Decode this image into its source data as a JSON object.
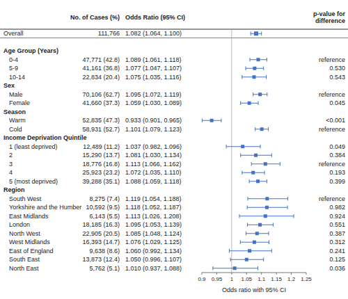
{
  "chart_data": {
    "type": "forest",
    "xlabel": "Odds ratio with 95% CI",
    "xlim": [
      0.9,
      1.25
    ],
    "xticks": [
      0.9,
      0.95,
      1,
      1.05,
      1.1,
      1.15,
      1.2,
      1.25
    ],
    "reference_line": 1,
    "color": "#4472C4",
    "column_headers": {
      "cases": "No. of Cases (%)",
      "odds_ratio": "Odds Ratio (95% CI)",
      "p_value": "p-value for\ndifference"
    },
    "overall": {
      "label": "Overall",
      "cases": "111,766",
      "value_label": "1.082 (1.064, 1.100)",
      "value": 1.082,
      "lo": 1.064,
      "hi": 1.1
    },
    "groups": [
      {
        "label": "Age Group (Years)",
        "rows": [
          {
            "label": "0-4",
            "cases": "47,771 (42.8)",
            "value_label": "1.089 (1.061, 1.118)",
            "value": 1.089,
            "lo": 1.061,
            "hi": 1.118,
            "p_value": "reference"
          },
          {
            "label": "5-9",
            "cases": "41,161 (36.8)",
            "value_label": "1.077 (1.047, 1.107)",
            "value": 1.077,
            "lo": 1.047,
            "hi": 1.107,
            "p_value": "0.530"
          },
          {
            "label": "10-14",
            "cases": "22,834 (20.4)",
            "value_label": "1.075 (1.035, 1.116)",
            "value": 1.075,
            "lo": 1.035,
            "hi": 1.116,
            "p_value": "0.543"
          }
        ]
      },
      {
        "label": "Sex",
        "rows": [
          {
            "label": "Male",
            "cases": "70,106 (62.7)",
            "value_label": "1.095 (1.072, 1.119)",
            "value": 1.095,
            "lo": 1.072,
            "hi": 1.119,
            "p_value": "reference"
          },
          {
            "label": "Female",
            "cases": "41,660 (37.3)",
            "value_label": "1.059 (1.030, 1.089)",
            "value": 1.059,
            "lo": 1.03,
            "hi": 1.089,
            "p_value": "0.045"
          }
        ]
      },
      {
        "label": "Season",
        "rows": [
          {
            "label": "Warm",
            "cases": "52,835 (47.3)",
            "value_label": "0.933 (0.901, 0.965)",
            "value": 0.933,
            "lo": 0.901,
            "hi": 0.965,
            "p_value": "<0.001"
          },
          {
            "label": "Cold",
            "cases": "58,931 (52.7)",
            "value_label": "1.101 (1.079, 1.123)",
            "value": 1.101,
            "lo": 1.079,
            "hi": 1.123,
            "p_value": "reference"
          }
        ]
      },
      {
        "label": "Income Deprivation Quintile",
        "rows": [
          {
            "label": "1 (least deprived)",
            "cases": "12,489 (11.2)",
            "value_label": "1.037 (0.982, 1.096)",
            "value": 1.037,
            "lo": 0.982,
            "hi": 1.096,
            "p_value": "0.049"
          },
          {
            "label": "2",
            "cases": "15,290 (13.7)",
            "value_label": "1.081 (1.030, 1.134)",
            "value": 1.081,
            "lo": 1.03,
            "hi": 1.134,
            "p_value": "0.384"
          },
          {
            "label": "3",
            "cases": "18,776 (16.8)",
            "value_label": "1.113 (1.066, 1.162)",
            "value": 1.113,
            "lo": 1.066,
            "hi": 1.162,
            "p_value": "reference"
          },
          {
            "label": "4",
            "cases": "25,923 (23.2)",
            "value_label": "1.072 (1.035, 1.110)",
            "value": 1.072,
            "lo": 1.035,
            "hi": 1.11,
            "p_value": "0.193"
          },
          {
            "label": "5 (most deprived)",
            "cases": "39,288 (35.1)",
            "value_label": "1.088 (1.059, 1.118)",
            "value": 1.088,
            "lo": 1.059,
            "hi": 1.118,
            "p_value": "0.399"
          }
        ]
      },
      {
        "label": "Region",
        "rows": [
          {
            "label": "South West",
            "cases": "8,275 (7.4)",
            "value_label": "1.119 (1.054, 1.188)",
            "value": 1.119,
            "lo": 1.054,
            "hi": 1.188,
            "p_value": "reference"
          },
          {
            "label": "Yorkshire and the Humber",
            "cases": "10,592 (9.5)",
            "value_label": "1.118 (1.052, 1.187)",
            "value": 1.118,
            "lo": 1.052,
            "hi": 1.187,
            "p_value": "0.982"
          },
          {
            "label": "East Midlands",
            "cases": "6,143 (5.5)",
            "value_label": "1.113 (1.026, 1.208)",
            "value": 1.113,
            "lo": 1.026,
            "hi": 1.208,
            "p_value": "0.924"
          },
          {
            "label": "London",
            "cases": "18,185 (16.3)",
            "value_label": "1.095 (1.053, 1.139)",
            "value": 1.095,
            "lo": 1.053,
            "hi": 1.139,
            "p_value": "0.551"
          },
          {
            "label": "North West",
            "cases": "22,905 (20.5)",
            "value_label": "1.085 (1.048, 1.124)",
            "value": 1.085,
            "lo": 1.048,
            "hi": 1.124,
            "p_value": "0.387"
          },
          {
            "label": "West Midlands",
            "cases": "16,393 (14.7)",
            "value_label": "1.076 (1.029, 1.125)",
            "value": 1.076,
            "lo": 1.029,
            "hi": 1.125,
            "p_value": "0.312"
          },
          {
            "label": "East of England",
            "cases": "9,638 (8.6)",
            "value_label": "1.060 (0.992, 1.134)",
            "value": 1.06,
            "lo": 0.992,
            "hi": 1.134,
            "p_value": "0.241"
          },
          {
            "label": "South East",
            "cases": "13,873 (12.4)",
            "value_label": "1.050 (0.996, 1.107)",
            "value": 1.05,
            "lo": 0.996,
            "hi": 1.107,
            "p_value": "0.125"
          },
          {
            "label": "North East",
            "cases": "5,762 (5.1)",
            "value_label": "1.010 (0.937, 1.088)",
            "value": 1.01,
            "lo": 0.937,
            "hi": 1.088,
            "p_value": "0.036"
          }
        ]
      }
    ]
  }
}
